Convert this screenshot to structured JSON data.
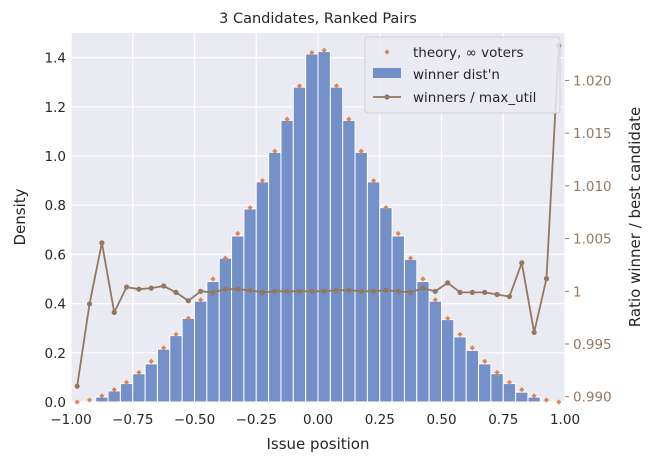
{
  "chart_data": {
    "type": "bar",
    "title": "3 Candidates, Ranked Pairs",
    "xlabel": "Issue position",
    "ylabel": "Density",
    "y2label": "Ratio winner / best candidate",
    "xlim": [
      -1.0,
      1.0
    ],
    "ylim": [
      0,
      1.5
    ],
    "y2lim": [
      0.9895,
      1.0245
    ],
    "xticks": [
      "−1.00",
      "−0.75",
      "−0.50",
      "−0.25",
      "0.00",
      "0.25",
      "0.50",
      "0.75",
      "1.00"
    ],
    "xtick_values": [
      -1.0,
      -0.75,
      -0.5,
      -0.25,
      0.0,
      0.25,
      0.5,
      0.75,
      1.0
    ],
    "yticks": [
      "0.0",
      "0.2",
      "0.4",
      "0.6",
      "0.8",
      "1.0",
      "1.2",
      "1.4"
    ],
    "ytick_values": [
      0.0,
      0.2,
      0.4,
      0.6,
      0.8,
      1.0,
      1.2,
      1.4
    ],
    "y2ticks": [
      "0.990",
      "0.995",
      "1",
      "1.005",
      "1.010",
      "1.015",
      "1.020"
    ],
    "y2tick_values": [
      0.99,
      0.995,
      1.0,
      1.005,
      1.01,
      1.015,
      1.02
    ],
    "grid": true,
    "legend_position": "top-right",
    "bin_width": 0.05,
    "bin_centers": [
      -0.975,
      -0.925,
      -0.875,
      -0.825,
      -0.775,
      -0.725,
      -0.675,
      -0.625,
      -0.575,
      -0.525,
      -0.475,
      -0.425,
      -0.375,
      -0.325,
      -0.275,
      -0.225,
      -0.175,
      -0.125,
      -0.075,
      -0.025,
      0.025,
      0.075,
      0.125,
      0.175,
      0.225,
      0.275,
      0.325,
      0.375,
      0.425,
      0.475,
      0.525,
      0.575,
      0.625,
      0.675,
      0.725,
      0.775,
      0.825,
      0.875,
      0.925,
      0.975
    ],
    "series": [
      {
        "name": "theory, ∞ voters",
        "kind": "scatter",
        "color": "#dd8452",
        "values": [
          0.0,
          0.008,
          0.025,
          0.05,
          0.08,
          0.12,
          0.165,
          0.22,
          0.275,
          0.34,
          0.415,
          0.5,
          0.585,
          0.685,
          0.79,
          0.9,
          1.02,
          1.15,
          1.285,
          1.42,
          1.43,
          1.285,
          1.15,
          1.02,
          0.9,
          0.79,
          0.685,
          0.585,
          0.5,
          0.415,
          0.34,
          0.275,
          0.22,
          0.165,
          0.12,
          0.08,
          0.05,
          0.025,
          0.008,
          0.0
        ]
      },
      {
        "name": "winner dist'n",
        "kind": "bar",
        "color": "#7391c8",
        "values": [
          0.0,
          0.0,
          0.02,
          0.045,
          0.075,
          0.115,
          0.155,
          0.215,
          0.27,
          0.34,
          0.41,
          0.49,
          0.585,
          0.675,
          0.785,
          0.895,
          1.015,
          1.145,
          1.28,
          1.415,
          1.425,
          1.28,
          1.145,
          1.015,
          0.895,
          0.79,
          0.675,
          0.58,
          0.49,
          0.41,
          0.335,
          0.265,
          0.21,
          0.155,
          0.115,
          0.075,
          0.04,
          0.02,
          0.0,
          0.0
        ]
      },
      {
        "name": "winners / max_util",
        "kind": "line",
        "axis": "right",
        "color": "#937860",
        "values": [
          0.991,
          0.9988,
          1.0046,
          0.998,
          1.0004,
          1.0002,
          1.0003,
          1.0005,
          0.9999,
          0.9991,
          1.0,
          0.9999,
          1.0002,
          1.0002,
          1.0001,
          0.9999,
          1.0,
          1.0,
          1.0,
          1.0,
          1.0,
          1.0001,
          1.0001,
          1.0,
          1.0,
          1.0001,
          1.0,
          0.9999,
          1.0003,
          1.0,
          1.0008,
          0.9999,
          0.9999,
          0.9999,
          0.9997,
          0.9995,
          1.0027,
          0.9961,
          1.0012,
          1.0233
        ]
      }
    ]
  }
}
